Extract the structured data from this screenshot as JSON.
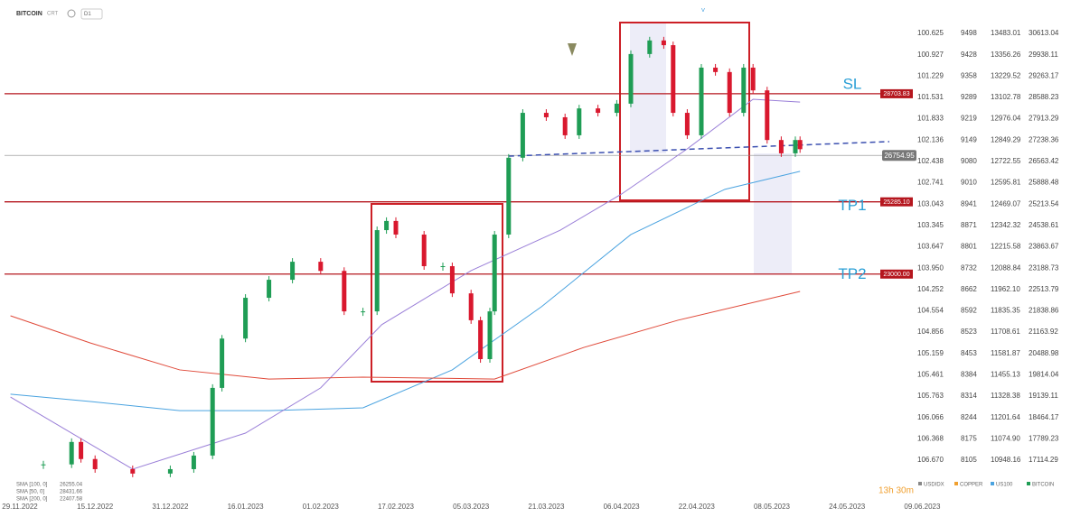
{
  "chart_data": {
    "type": "candlestick",
    "title": "BITCOIN",
    "mode": "CRT",
    "interval": "D1",
    "x": [
      "29.11.2022",
      "04.12.2022",
      "10.12.2022",
      "12.12.2022",
      "15.12.2022",
      "23.12.2022",
      "31.12.2022",
      "05.01.2023",
      "09.01.2023",
      "11.01.2023",
      "16.01.2023",
      "21.01.2023",
      "26.01.2023",
      "01.02.2023",
      "06.02.2023",
      "10.02.2023",
      "13.02.2023",
      "15.02.2023",
      "17.02.2023",
      "23.02.2023",
      "27.02.2023",
      "01.03.2023",
      "05.03.2023",
      "07.03.2023",
      "09.03.2023",
      "10.03.2023",
      "13.03.2023",
      "16.03.2023",
      "21.03.2023",
      "25.03.2023",
      "28.03.2023",
      "01.04.2023",
      "05.04.2023",
      "08.04.2023",
      "12.04.2023",
      "15.04.2023",
      "17.04.2023",
      "20.04.2023",
      "23.04.2023",
      "26.04.2023",
      "29.04.2023",
      "02.05.2023",
      "04.05.2023",
      "07.05.2023",
      "10.05.2023",
      "13.05.2023",
      "14.05.2023"
    ],
    "series": [
      {
        "name": "BITCOIN",
        "up_color": "#1f9d55",
        "down_color": "#d9182e",
        "values": [
          16970,
          16980,
          17690,
          17150,
          16830,
          16690,
          16830,
          17260,
          19400,
          20960,
          22250,
          22820,
          23390,
          23100,
          21820,
          21820,
          24390,
          24680,
          24250,
          23250,
          23250,
          22390,
          21540,
          20310,
          21820,
          24250,
          26680,
          28100,
          27960,
          27390,
          28240,
          28100,
          28390,
          29960,
          30390,
          30240,
          28100,
          27390,
          29530,
          29390,
          28100,
          29530,
          28810,
          27240,
          26820,
          27240,
          26950
        ]
      }
    ],
    "moving_averages": [
      {
        "name": "SMA [100, 0]",
        "last_value": 26255.04,
        "color": "#4aa3e0",
        "x": [
          "27.11.2022",
          "14.12.2022",
          "02.01.2023",
          "21.01.2023",
          "10.02.2023",
          "01.03.2023",
          "20.03.2023",
          "08.04.2023",
          "28.04.2023",
          "14.05.2023"
        ],
        "values": [
          19200,
          18970,
          18680,
          18680,
          18770,
          19970,
          21970,
          24250,
          25680,
          26250
        ]
      },
      {
        "name": "SMA [50, 0]",
        "last_value": 28431.66,
        "color": "#9a7fd8",
        "x": [
          "27.11.2022",
          "23.12.2022",
          "16.01.2023",
          "01.02.2023",
          "14.02.2023",
          "05.03.2023",
          "24.03.2023",
          "06.04.2023",
          "20.04.2023",
          "04.05.2023",
          "14.05.2023"
        ],
        "values": [
          19110,
          16830,
          17970,
          19400,
          21400,
          23110,
          24390,
          25530,
          26960,
          28530,
          28440
        ]
      },
      {
        "name": "SMA [200, 0]",
        "last_value": 22407.58,
        "color": "#e04a3a",
        "x": [
          "27.11.2022",
          "14.12.2022",
          "02.01.2023",
          "21.01.2023",
          "10.02.2023",
          "10.03.2023",
          "29.03.2023",
          "18.04.2023",
          "14.05.2023"
        ],
        "values": [
          21680,
          20820,
          19970,
          19680,
          19740,
          19680,
          20680,
          21540,
          22450
        ]
      }
    ],
    "levels": [
      {
        "name": "SL",
        "value": 28703.83
      },
      {
        "name": "TP1",
        "value": 25285.1,
        "value_label": "25285.10"
      },
      {
        "name": "TP2",
        "value": 23000,
        "value_label": "23000.00"
      }
    ],
    "level_color": "#b5161e",
    "last_price": 26754.95,
    "trendline": {
      "x": [
        "13.03.2023",
        "02.06.2023"
      ],
      "values": [
        26730,
        27190
      ],
      "color": "#3b4fb0"
    },
    "ylim": [
      17114.29,
      30613.04
    ],
    "yticks": [
      30613.04,
      29938.11,
      29263.17,
      28588.23,
      27913.29,
      27238.36,
      26563.42,
      25888.48,
      25213.54,
      24538.61,
      23863.67,
      23188.73,
      22513.79,
      21838.86,
      21163.92,
      20488.98,
      19814.04,
      19139.11,
      18464.17,
      17789.23,
      17114.29
    ],
    "xticks": [
      "29.11.2022",
      "15.12.2022",
      "31.12.2022",
      "16.01.2023",
      "01.02.2023",
      "17.02.2023",
      "05.03.2023",
      "21.03.2023",
      "06.04.2023",
      "22.04.2023",
      "08.05.2023",
      "24.05.2023",
      "09.06.2023"
    ],
    "other_scales": [
      [
        "100.625",
        "100.927",
        "101.229",
        "101.531",
        "101.833",
        "102.136",
        "102.438",
        "102.741",
        "103.043",
        "103.345",
        "103.647",
        "103.950",
        "104.252",
        "104.554",
        "104.856",
        "105.159",
        "105.461",
        "105.763",
        "106.066",
        "106.368",
        "106.670"
      ],
      [
        "9498",
        "9428",
        "9358",
        "9289",
        "9219",
        "9149",
        "9080",
        "9010",
        "8941",
        "8871",
        "8801",
        "8732",
        "8662",
        "8592",
        "8523",
        "8453",
        "8384",
        "8314",
        "8244",
        "8175",
        "8105"
      ],
      [
        "13483.01",
        "13356.26",
        "13229.52",
        "13102.78",
        "12976.04",
        "12849.29",
        "12722.55",
        "12595.81",
        "12469.07",
        "12342.32",
        "12215.58",
        "12088.84",
        "11962.10",
        "11835.35",
        "11708.61",
        "11581.87",
        "11455.13",
        "11328.38",
        "11201.64",
        "11074.90",
        "10948.16"
      ]
    ],
    "countdown": "13h 30m",
    "tabs": [
      {
        "name": "USDIDX",
        "color": "#888888"
      },
      {
        "name": "COPPER",
        "color": "#f0a030"
      },
      {
        "name": "US100",
        "color": "#4aa3e0"
      },
      {
        "name": "BITCOIN",
        "color": "#1f9d55"
      }
    ]
  }
}
